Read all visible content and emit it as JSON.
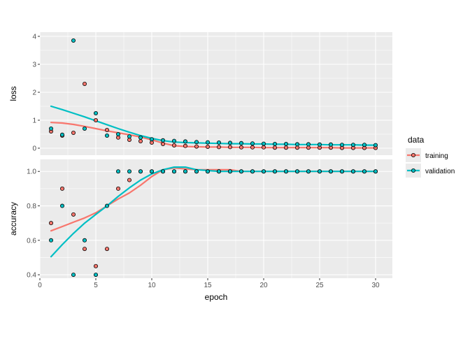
{
  "chart_data": {
    "type": "scatter",
    "xlabel": "epoch",
    "x": [
      1,
      2,
      3,
      4,
      5,
      6,
      7,
      8,
      9,
      10,
      11,
      12,
      13,
      14,
      15,
      16,
      17,
      18,
      19,
      20,
      21,
      22,
      23,
      24,
      25,
      26,
      27,
      28,
      29,
      30
    ],
    "xlim": [
      0,
      31.5
    ],
    "xticks": [
      0,
      5,
      10,
      15,
      20,
      25,
      30
    ],
    "x_tick_labels": [
      "0",
      "5",
      "10",
      "15",
      "20",
      "25",
      "30"
    ],
    "grid": true,
    "legend": {
      "title": "data",
      "position": "right",
      "entries": [
        "training",
        "validation"
      ]
    },
    "colors": {
      "training": "#f8766d",
      "validation": "#00bfc4",
      "panel": "#ebebeb",
      "grid": "#ffffff"
    },
    "panels": [
      {
        "ylabel": "loss",
        "ylim": [
          -0.25,
          4.15
        ],
        "yticks": [
          0,
          1,
          2,
          3,
          4
        ],
        "y_tick_labels": [
          "0",
          "1",
          "2",
          "3",
          "4"
        ],
        "series": [
          {
            "name": "training",
            "points": [
              0.6,
              0.45,
              0.55,
              2.3,
              1.0,
              0.65,
              0.38,
              0.3,
              0.25,
              0.2,
              0.15,
              0.1,
              0.08,
              0.06,
              0.05,
              0.04,
              0.04,
              0.03,
              0.03,
              0.03,
              0.02,
              0.02,
              0.02,
              0.02,
              0.02,
              0.02,
              0.01,
              0.01,
              0.01,
              0.01
            ],
            "smooth": [
              0.92,
              0.9,
              0.85,
              0.78,
              0.7,
              0.62,
              0.55,
              0.48,
              0.4,
              0.3,
              0.18,
              0.09,
              0.06,
              0.05,
              0.04,
              0.04,
              0.03,
              0.03,
              0.03,
              0.02,
              0.02,
              0.02,
              0.02,
              0.02,
              0.02,
              0.02,
              0.01,
              0.01,
              0.01,
              0.01
            ]
          },
          {
            "name": "validation",
            "points": [
              0.7,
              0.48,
              3.85,
              0.7,
              1.25,
              0.45,
              0.5,
              0.42,
              0.38,
              0.32,
              0.28,
              0.26,
              0.24,
              0.22,
              0.21,
              0.2,
              0.19,
              0.18,
              0.17,
              0.16,
              0.15,
              0.15,
              0.14,
              0.14,
              0.13,
              0.13,
              0.12,
              0.12,
              0.12,
              0.11
            ],
            "smooth": [
              1.5,
              1.38,
              1.25,
              1.12,
              0.98,
              0.84,
              0.7,
              0.57,
              0.45,
              0.35,
              0.27,
              0.22,
              0.2,
              0.19,
              0.18,
              0.17,
              0.16,
              0.16,
              0.15,
              0.15,
              0.14,
              0.14,
              0.13,
              0.13,
              0.13,
              0.12,
              0.12,
              0.12,
              0.11,
              0.11
            ]
          }
        ]
      },
      {
        "ylabel": "accuracy",
        "ylim": [
          0.38,
          1.07
        ],
        "yticks": [
          0.4,
          0.6,
          0.8,
          1.0
        ],
        "y_tick_labels": [
          "0.4",
          "0.6",
          "0.8",
          "1.0"
        ],
        "series": [
          {
            "name": "training",
            "points": [
              0.7,
              0.9,
              0.75,
              0.55,
              0.45,
              0.55,
              0.9,
              0.95,
              1.0,
              1.0,
              1.0,
              1.0,
              1.0,
              1.0,
              1.0,
              1.0,
              1.0,
              1.0,
              1.0,
              1.0,
              1.0,
              1.0,
              1.0,
              1.0,
              1.0,
              1.0,
              1.0,
              1.0,
              1.0,
              1.0
            ],
            "smooth": [
              0.655,
              0.68,
              0.705,
              0.73,
              0.76,
              0.8,
              0.84,
              0.875,
              0.92,
              0.97,
              1.01,
              1.02,
              1.015,
              1.01,
              1.01,
              1.01,
              1.01,
              1.0,
              1.0,
              1.0,
              1.0,
              1.0,
              1.0,
              1.0,
              1.0,
              1.0,
              1.0,
              1.0,
              1.0,
              1.0
            ]
          },
          {
            "name": "validation",
            "points": [
              0.6,
              0.8,
              0.4,
              0.6,
              0.4,
              0.8,
              1.0,
              1.0,
              1.0,
              1.0,
              1.0,
              1.0,
              1.0,
              1.0,
              1.0,
              1.0,
              1.0,
              1.0,
              1.0,
              1.0,
              1.0,
              1.0,
              1.0,
              1.0,
              1.0,
              1.0,
              1.0,
              1.0,
              1.0,
              1.0
            ],
            "smooth": [
              0.505,
              0.575,
              0.64,
              0.7,
              0.75,
              0.8,
              0.855,
              0.905,
              0.95,
              0.985,
              1.01,
              1.025,
              1.025,
              1.01,
              1.005,
              1.0,
              1.0,
              1.0,
              1.0,
              1.0,
              1.0,
              1.0,
              1.0,
              1.0,
              1.0,
              1.0,
              1.0,
              1.0,
              1.0,
              1.0
            ]
          }
        ]
      }
    ]
  }
}
